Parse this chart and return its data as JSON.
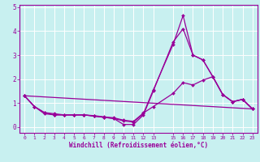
{
  "xlabel": "Windchill (Refroidissement éolien,°C)",
  "bg_color": "#c8f0f0",
  "line_color": "#990099",
  "grid_color": "#ffffff",
  "xlim": [
    -0.5,
    23.5
  ],
  "ylim": [
    -0.25,
    5.1
  ],
  "xticks": [
    0,
    1,
    2,
    3,
    4,
    5,
    6,
    7,
    8,
    9,
    10,
    11,
    12,
    13,
    15,
    16,
    17,
    18,
    19,
    20,
    21,
    22,
    23
  ],
  "yticks": [
    0,
    1,
    2,
    3,
    4,
    5
  ],
  "lines": [
    {
      "x": [
        0,
        1,
        2,
        3,
        4,
        5,
        6,
        7,
        8,
        9,
        10,
        11,
        12,
        13,
        15,
        16,
        17,
        18,
        19,
        20,
        21,
        22,
        23
      ],
      "y": [
        1.3,
        0.85,
        0.55,
        0.5,
        0.5,
        0.5,
        0.5,
        0.45,
        0.4,
        0.35,
        0.1,
        0.1,
        0.5,
        1.5,
        3.55,
        4.1,
        3.0,
        2.8,
        2.1,
        1.35,
        1.05,
        1.15,
        0.75
      ]
    },
    {
      "x": [
        0,
        1,
        2,
        3,
        4,
        5,
        6,
        7,
        8,
        9,
        10,
        11,
        12,
        13,
        15,
        16,
        17,
        18,
        19,
        20,
        21,
        22,
        23
      ],
      "y": [
        1.3,
        0.85,
        0.6,
        0.5,
        0.5,
        0.5,
        0.5,
        0.45,
        0.4,
        0.35,
        0.25,
        0.2,
        0.55,
        1.55,
        3.45,
        4.65,
        3.0,
        2.8,
        2.1,
        1.35,
        1.05,
        1.15,
        0.75
      ]
    },
    {
      "x": [
        0,
        1,
        2,
        3,
        4,
        5,
        6,
        7,
        8,
        9,
        10,
        11,
        12,
        13,
        15,
        16,
        17,
        18,
        19,
        20,
        21,
        22,
        23
      ],
      "y": [
        1.3,
        0.85,
        0.6,
        0.55,
        0.5,
        0.5,
        0.5,
        0.47,
        0.42,
        0.38,
        0.28,
        0.23,
        0.58,
        0.85,
        1.4,
        1.85,
        1.75,
        1.95,
        2.1,
        1.35,
        1.05,
        1.15,
        0.75
      ]
    },
    {
      "x": [
        0,
        23
      ],
      "y": [
        1.3,
        0.75
      ]
    }
  ]
}
